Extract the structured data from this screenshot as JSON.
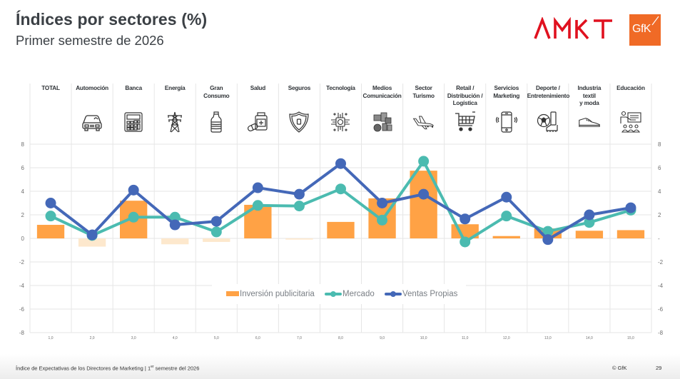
{
  "header": {
    "title": "Índices por sectores (%)",
    "subtitle": "Primer semestre de 2026",
    "logos": [
      "AMKT",
      "GfK"
    ]
  },
  "sectors": [
    {
      "label": "TOTAL",
      "icon": "none"
    },
    {
      "label": "Automoción",
      "icon": "car-icon"
    },
    {
      "label": "Banca",
      "icon": "calculator-icon"
    },
    {
      "label": "Energía",
      "icon": "power-tower-icon"
    },
    {
      "label": "Gran\nConsumo",
      "icon": "bottle-icon"
    },
    {
      "label": "Salud",
      "icon": "medicine-icon"
    },
    {
      "label": "Seguros",
      "icon": "shield-icon"
    },
    {
      "label": "Tecnología",
      "icon": "chip-icon"
    },
    {
      "label": "Medios\nComunicación",
      "icon": "media-icon"
    },
    {
      "label": "Sector\nTurismo",
      "icon": "airplane-icon"
    },
    {
      "label": "Retail /\nDistribución /\nLogística",
      "icon": "cart-icon"
    },
    {
      "label": "Servicios\nMarketing",
      "icon": "phone-icon"
    },
    {
      "label": "Deporte /\nEntretenimiento",
      "icon": "football-icon"
    },
    {
      "label": "Industria\ntextil\ny moda",
      "icon": "shoe-icon"
    },
    {
      "label": "Educación",
      "icon": "teacher-icon"
    }
  ],
  "chart_data": {
    "type": "bar+line",
    "title": "Índices por sectores (%)",
    "subtitle": "Primer semestre de 2026",
    "categories": [
      "1,0",
      "2,0",
      "3,0",
      "4,0",
      "5,0",
      "6,0",
      "7,0",
      "8,0",
      "9,0",
      "10,0",
      "11,0",
      "12,0",
      "13,0",
      "14,0",
      "15,0"
    ],
    "category_names": [
      "TOTAL",
      "Automoción",
      "Banca",
      "Energía",
      "Gran Consumo",
      "Salud",
      "Seguros",
      "Tecnología",
      "Medios Comunicación",
      "Sector Turismo",
      "Retail / Distribución / Logística",
      "Servicios Marketing",
      "Deporte / Entretenimiento",
      "Industria textil y moda",
      "Educación"
    ],
    "series": [
      {
        "name": "Inversión publicitaria",
        "type": "bar",
        "color": "#ffa245",
        "negative_color": "#fde8cd",
        "values": [
          1.15,
          -0.7,
          3.2,
          -0.5,
          -0.3,
          2.85,
          -0.1,
          1.4,
          3.4,
          5.75,
          1.2,
          0.2,
          0.85,
          0.65,
          0.7
        ]
      },
      {
        "name": "Mercado",
        "type": "line",
        "color": "#4bbbb0",
        "values": [
          1.9,
          0.25,
          1.8,
          1.8,
          0.55,
          2.8,
          2.75,
          4.2,
          1.55,
          6.55,
          -0.3,
          1.9,
          0.6,
          1.35,
          2.4
        ]
      },
      {
        "name": "Ventas Propias",
        "type": "line",
        "color": "#4468b8",
        "values": [
          3.0,
          0.3,
          4.1,
          1.15,
          1.45,
          4.3,
          3.75,
          6.35,
          3.0,
          3.75,
          1.65,
          3.5,
          -0.1,
          2.0,
          2.6
        ]
      }
    ],
    "y_ticks": [
      "8",
      "6",
      "4",
      "2",
      "0",
      "-2",
      "-4",
      "-6",
      "-8"
    ],
    "y_ticks_right": [
      "8",
      "6",
      "4",
      "2",
      "-",
      "-2",
      "-4",
      "-6",
      "-8"
    ],
    "ylim": [
      -8,
      8
    ],
    "xlabel": "",
    "ylabel": "",
    "grid": true,
    "legend_position": "center"
  },
  "footer": {
    "text_main": "Índice de Expectativas de los Directores de Marketing | 1",
    "text_sup": "er",
    "text_tail": " semestre del 2026",
    "copyright": "© GfK",
    "page": "29"
  }
}
